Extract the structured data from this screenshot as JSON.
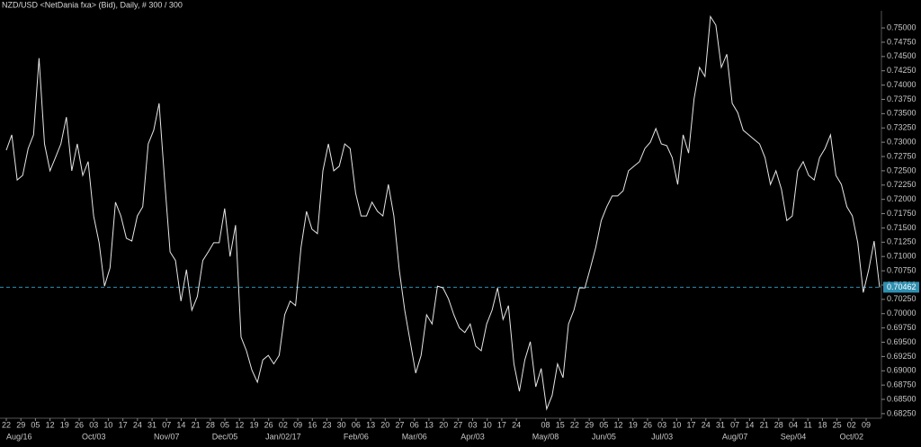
{
  "chart_data": {
    "type": "line",
    "title": "NZD/USD <NetDania fxa> (Bid), Daily, # 300 / 300",
    "series": [
      {
        "name": "NZD/USD",
        "color": "#e6e6e6",
        "values": [
          0.7286,
          0.7313,
          0.7234,
          0.7242,
          0.7289,
          0.7313,
          0.7447,
          0.7297,
          0.725,
          0.7273,
          0.7297,
          0.7344,
          0.725,
          0.7297,
          0.7242,
          0.7266,
          0.7171,
          0.7124,
          0.7048,
          0.708,
          0.7195,
          0.7171,
          0.7132,
          0.7127,
          0.7171,
          0.7187,
          0.7297,
          0.7321,
          0.7368,
          0.7234,
          0.7108,
          0.7093,
          0.7022,
          0.7077,
          0.7006,
          0.703,
          0.7093,
          0.7108,
          0.7124,
          0.7124,
          0.7184,
          0.71,
          0.7155,
          0.6959,
          0.6935,
          0.6901,
          0.688,
          0.6919,
          0.6927,
          0.6912,
          0.6927,
          0.6998,
          0.7022,
          0.7014,
          0.7116,
          0.7179,
          0.7148,
          0.714,
          0.725,
          0.7297,
          0.725,
          0.7258,
          0.7297,
          0.7289,
          0.7211,
          0.7171,
          0.7171,
          0.7195,
          0.7179,
          0.7171,
          0.7226,
          0.7171,
          0.7077,
          0.7006,
          0.6951,
          0.6896,
          0.6927,
          0.6998,
          0.6982,
          0.7048,
          0.7045,
          0.7026,
          0.6998,
          0.6975,
          0.6967,
          0.6982,
          0.6943,
          0.6935,
          0.6982,
          0.7006,
          0.7045,
          0.699,
          0.7014,
          0.6912,
          0.6864,
          0.6919,
          0.6951,
          0.6872,
          0.6904,
          0.6833,
          0.6857,
          0.6912,
          0.6888,
          0.6982,
          0.7006,
          0.7045,
          0.7045,
          0.708,
          0.7116,
          0.7163,
          0.7187,
          0.7206,
          0.7206,
          0.7215,
          0.725,
          0.7258,
          0.7266,
          0.7289,
          0.73,
          0.7324,
          0.7297,
          0.7294,
          0.7273,
          0.7226,
          0.7313,
          0.7281,
          0.7376,
          0.7431,
          0.7415,
          0.752,
          0.7505,
          0.7431,
          0.7454,
          0.7368,
          0.7352,
          0.7321,
          0.7313,
          0.7305,
          0.7297,
          0.7273,
          0.7226,
          0.725,
          0.7218,
          0.7163,
          0.7171,
          0.725,
          0.7266,
          0.7242,
          0.7234,
          0.7273,
          0.7289,
          0.7313,
          0.7242,
          0.7226,
          0.7187,
          0.7171,
          0.7124,
          0.7037,
          0.7077,
          0.7127,
          0.7046
        ]
      }
    ],
    "last_price": 0.70462,
    "last_color": "#2f8fb0",
    "xlim": [
      0,
      160
    ],
    "ylim": [
      0.6817,
      0.753
    ],
    "yticks": [
      {
        "value": 0.6825,
        "label": "0.68250"
      },
      {
        "value": 0.685,
        "label": "0.68500"
      },
      {
        "value": 0.6875,
        "label": "0.68750"
      },
      {
        "value": 0.69,
        "label": "0.69000"
      },
      {
        "value": 0.6925,
        "label": "0.69250"
      },
      {
        "value": 0.695,
        "label": "0.69500"
      },
      {
        "value": 0.6975,
        "label": "0.69750"
      },
      {
        "value": 0.7,
        "label": "0.70000"
      },
      {
        "value": 0.7025,
        "label": "0.70250"
      },
      {
        "value": 0.705,
        "label": "0.70500"
      },
      {
        "value": 0.7075,
        "label": "0.70750"
      },
      {
        "value": 0.71,
        "label": "0.71000"
      },
      {
        "value": 0.7125,
        "label": "0.71250"
      },
      {
        "value": 0.715,
        "label": "0.71500"
      },
      {
        "value": 0.7175,
        "label": "0.71750"
      },
      {
        "value": 0.72,
        "label": "0.72000"
      },
      {
        "value": 0.7225,
        "label": "0.72250"
      },
      {
        "value": 0.725,
        "label": "0.72500"
      },
      {
        "value": 0.7275,
        "label": "0.72750"
      },
      {
        "value": 0.73,
        "label": "0.73000"
      },
      {
        "value": 0.7325,
        "label": "0.73250"
      },
      {
        "value": 0.735,
        "label": "0.73500"
      },
      {
        "value": 0.7375,
        "label": "0.73750"
      },
      {
        "value": 0.74,
        "label": "0.74000"
      },
      {
        "value": 0.7425,
        "label": "0.74250"
      },
      {
        "value": 0.745,
        "label": "0.74500"
      },
      {
        "value": 0.7475,
        "label": "0.74750"
      },
      {
        "value": 0.75,
        "label": "0.75000"
      }
    ],
    "xticks": [
      {
        "value": 0,
        "label": "22"
      },
      {
        "value": 2.67,
        "label": "29"
      },
      {
        "value": 5.34,
        "label": "05"
      },
      {
        "value": 8.01,
        "label": "12"
      },
      {
        "value": 10.68,
        "label": "19"
      },
      {
        "value": 13.35,
        "label": "26"
      },
      {
        "value": 16.02,
        "label": "03"
      },
      {
        "value": 18.69,
        "label": "10"
      },
      {
        "value": 21.36,
        "label": "17"
      },
      {
        "value": 24.03,
        "label": "24"
      },
      {
        "value": 26.7,
        "label": "31"
      },
      {
        "value": 29.37,
        "label": "07"
      },
      {
        "value": 32.04,
        "label": "14"
      },
      {
        "value": 34.71,
        "label": "21"
      },
      {
        "value": 37.38,
        "label": "28"
      },
      {
        "value": 40.05,
        "label": "05"
      },
      {
        "value": 42.72,
        "label": "12"
      },
      {
        "value": 45.39,
        "label": "19"
      },
      {
        "value": 48.06,
        "label": "26"
      },
      {
        "value": 50.73,
        "label": "02"
      },
      {
        "value": 53.4,
        "label": "09"
      },
      {
        "value": 56.07,
        "label": "16"
      },
      {
        "value": 58.74,
        "label": "23"
      },
      {
        "value": 61.41,
        "label": "30"
      },
      {
        "value": 64.08,
        "label": "06"
      },
      {
        "value": 66.75,
        "label": "13"
      },
      {
        "value": 69.42,
        "label": "20"
      },
      {
        "value": 72.09,
        "label": "27"
      },
      {
        "value": 74.76,
        "label": "06"
      },
      {
        "value": 77.43,
        "label": "13"
      },
      {
        "value": 80.1,
        "label": "20"
      },
      {
        "value": 82.77,
        "label": "27"
      },
      {
        "value": 85.44,
        "label": "03"
      },
      {
        "value": 88.11,
        "label": "10"
      },
      {
        "value": 90.78,
        "label": "17"
      },
      {
        "value": 93.45,
        "label": "24"
      },
      {
        "value": 98.79,
        "label": "08"
      },
      {
        "value": 101.46,
        "label": "15"
      },
      {
        "value": 104.13,
        "label": "22"
      },
      {
        "value": 106.8,
        "label": "29"
      },
      {
        "value": 109.47,
        "label": "05"
      },
      {
        "value": 112.14,
        "label": "12"
      },
      {
        "value": 114.81,
        "label": "19"
      },
      {
        "value": 117.48,
        "label": "26"
      },
      {
        "value": 120.15,
        "label": "03"
      },
      {
        "value": 122.82,
        "label": "10"
      },
      {
        "value": 125.49,
        "label": "17"
      },
      {
        "value": 128.16,
        "label": "24"
      },
      {
        "value": 130.83,
        "label": "31"
      },
      {
        "value": 133.5,
        "label": "07"
      },
      {
        "value": 136.17,
        "label": "14"
      },
      {
        "value": 138.84,
        "label": "21"
      },
      {
        "value": 141.51,
        "label": "28"
      },
      {
        "value": 144.18,
        "label": "04"
      },
      {
        "value": 146.85,
        "label": "11"
      },
      {
        "value": 149.52,
        "label": "18"
      },
      {
        "value": 152.19,
        "label": "25"
      },
      {
        "value": 154.86,
        "label": "02"
      },
      {
        "value": 157.53,
        "label": "09"
      }
    ],
    "month_labels": [
      {
        "value": 0,
        "label": "Aug/16"
      },
      {
        "value": 16.02,
        "label": "Oct/03"
      },
      {
        "value": 29.37,
        "label": "Nov/07"
      },
      {
        "value": 40.05,
        "label": "Dec/05"
      },
      {
        "value": 50.73,
        "label": "Jan/02/17"
      },
      {
        "value": 64.08,
        "label": "Feb/06"
      },
      {
        "value": 74.76,
        "label": "Mar/06"
      },
      {
        "value": 85.44,
        "label": "Apr/03"
      },
      {
        "value": 98.79,
        "label": "May/08"
      },
      {
        "value": 109.47,
        "label": "Jun/05"
      },
      {
        "value": 120.15,
        "label": "Jul/03"
      },
      {
        "value": 133.5,
        "label": "Aug/07"
      },
      {
        "value": 144.18,
        "label": "Sep/04"
      },
      {
        "value": 154.86,
        "label": "Oct/02"
      }
    ]
  }
}
